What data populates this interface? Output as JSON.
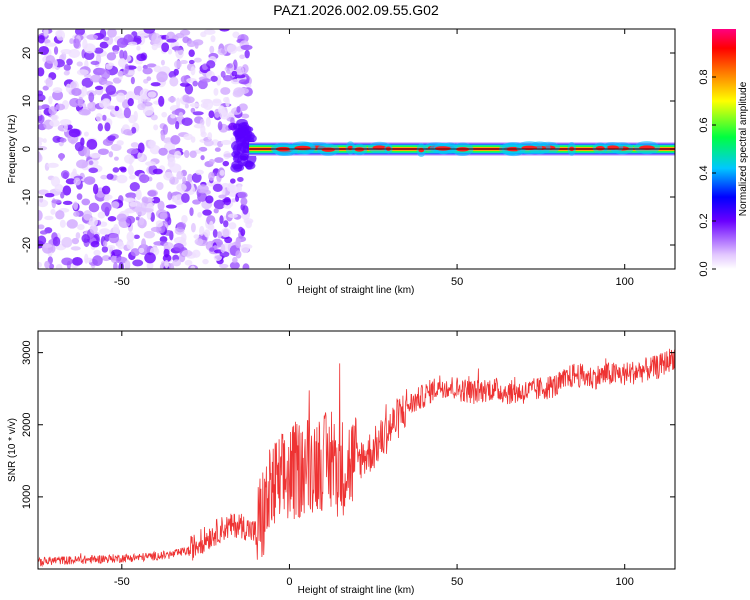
{
  "title": "PAZ1.2026.002.09.55.G02",
  "chart_data": [
    {
      "type": "heatmap",
      "xlabel": "Height of straight line (km)",
      "ylabel": "Frequency (Hz)",
      "xlim": [
        -75,
        115
      ],
      "ylim": [
        -25,
        25
      ],
      "xticks": [
        -50,
        0,
        50,
        100
      ],
      "yticks": [
        -20,
        -10,
        0,
        10,
        20
      ],
      "description_values": {
        "noise_region_x": [
          -75,
          -12
        ],
        "line_region_x": [
          -12,
          115
        ],
        "line_frequency_hz": 0
      },
      "colorbar": {
        "label": "Normalized spectral amplitude",
        "range": [
          0,
          1
        ],
        "ticks": [
          0.0,
          0.2,
          0.4,
          0.6,
          0.8
        ]
      }
    },
    {
      "type": "line",
      "xlabel": "Height of straight line (km)",
      "ylabel": "SNR (10 * v/v)",
      "xlim": [
        -75,
        115
      ],
      "ylim": [
        0,
        3300
      ],
      "xticks": [
        -50,
        0,
        50,
        100
      ],
      "yticks": [
        1000,
        2000,
        3000
      ],
      "color": "#ee3333",
      "series": [
        {
          "name": "SNR",
          "x": [
            -75,
            -70,
            -65,
            -60,
            -55,
            -50,
            -45,
            -40,
            -35,
            -30,
            -25,
            -20,
            -15,
            -10,
            -5,
            0,
            5,
            10,
            15,
            20,
            25,
            30,
            35,
            40,
            45,
            50,
            55,
            60,
            65,
            70,
            75,
            80,
            85,
            90,
            95,
            100,
            105,
            110,
            115
          ],
          "values": [
            90,
            120,
            120,
            130,
            140,
            150,
            160,
            180,
            200,
            260,
            420,
            560,
            620,
            500,
            1100,
            1300,
            1450,
            1500,
            1400,
            1500,
            1650,
            1950,
            2250,
            2400,
            2550,
            2500,
            2450,
            2500,
            2450,
            2450,
            2500,
            2550,
            2700,
            2650,
            2700,
            2700,
            2750,
            2800,
            2950
          ]
        }
      ]
    }
  ]
}
